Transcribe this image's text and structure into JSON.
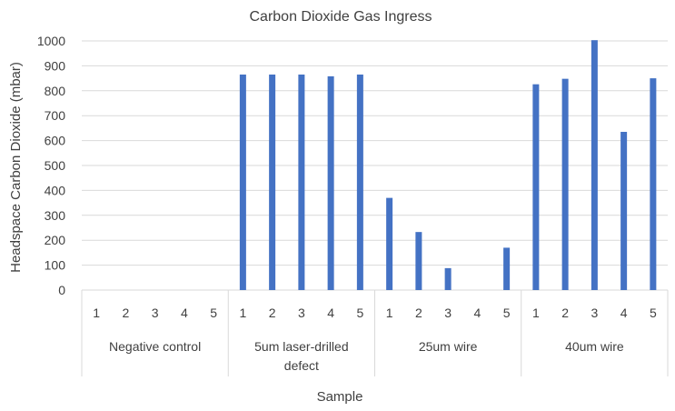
{
  "chart_data": {
    "type": "bar",
    "title": "Carbon Dioxide Gas Ingress",
    "xlabel": "Sample",
    "ylabel": "Headspace Carbon Dioxide (mbar)",
    "ylim": [
      0,
      1000
    ],
    "yticks": [
      0,
      100,
      200,
      300,
      400,
      500,
      600,
      700,
      800,
      900,
      1000
    ],
    "grid": true,
    "groups": [
      {
        "label_lines": [
          "Negative control"
        ],
        "samples": [
          "1",
          "2",
          "3",
          "4",
          "5"
        ],
        "values": [
          0,
          0,
          0,
          0,
          0
        ]
      },
      {
        "label_lines": [
          "5um laser-drilled",
          "defect"
        ],
        "samples": [
          "1",
          "2",
          "3",
          "4",
          "5"
        ],
        "values": [
          865,
          865,
          865,
          858,
          865
        ]
      },
      {
        "label_lines": [
          "25um wire"
        ],
        "samples": [
          "1",
          "2",
          "3",
          "4",
          "5"
        ],
        "values": [
          370,
          233,
          88,
          0,
          170
        ]
      },
      {
        "label_lines": [
          "40um wire"
        ],
        "samples": [
          "1",
          "2",
          "3",
          "4",
          "5"
        ],
        "values": [
          826,
          848,
          1003,
          635,
          850
        ]
      }
    ],
    "bar_color": "#4472c4"
  }
}
